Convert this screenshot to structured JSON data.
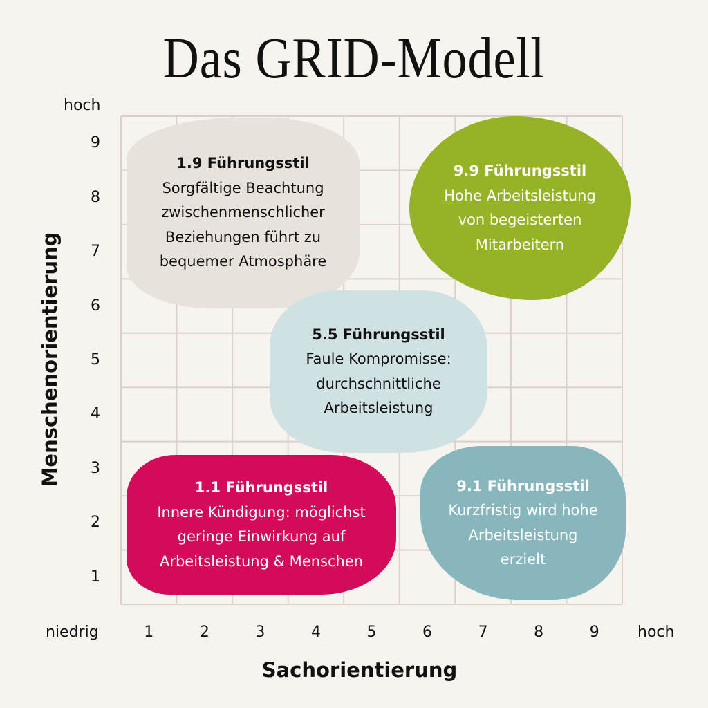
{
  "title": "Das GRID-Modell",
  "y_axis": {
    "label": "Menschenorientierung",
    "high": "hoch",
    "ticks": [
      "1",
      "2",
      "3",
      "4",
      "5",
      "6",
      "7",
      "8",
      "9"
    ]
  },
  "x_axis": {
    "label": "Sachorientierung",
    "low": "niedrig",
    "high": "hoch",
    "ticks": [
      "1",
      "2",
      "3",
      "4",
      "5",
      "6",
      "7",
      "8",
      "9"
    ]
  },
  "styles": [
    {
      "id": "b19",
      "title": "1.9 Führungsstil",
      "lines": [
        "Sorgfältige Beachtung",
        "zwischenmenschlicher",
        "Beziehungen führt zu",
        "bequemer Atmosphäre"
      ],
      "color": "#e8e2dc"
    },
    {
      "id": "b99",
      "title": "9.9 Führungsstil",
      "lines": [
        "Hohe Arbeitsleistung",
        "von begeisterten",
        "Mitarbeitern"
      ],
      "color": "#96b227"
    },
    {
      "id": "b55",
      "title": "5.5 Führungsstil",
      "lines": [
        "Faule Kompromisse:",
        "durchschnittliche",
        "Arbeitsleistung"
      ],
      "color": "#d0e1e3"
    },
    {
      "id": "b11",
      "title": "1.1 Führungsstil",
      "lines": [
        "Innere Kündigung: möglichst",
        "geringe Einwirkung auf",
        "Arbeitsleistung & Menschen"
      ],
      "color": "#d30b58"
    },
    {
      "id": "b91",
      "title": "9.1 Führungsstil",
      "lines": [
        "Kurzfristig wird hohe",
        "Arbeitsleistung",
        "erzielt"
      ],
      "color": "#87b6bc"
    }
  ],
  "colors": {
    "background": "#f7f4f0",
    "grid": "#d8d2cb"
  }
}
